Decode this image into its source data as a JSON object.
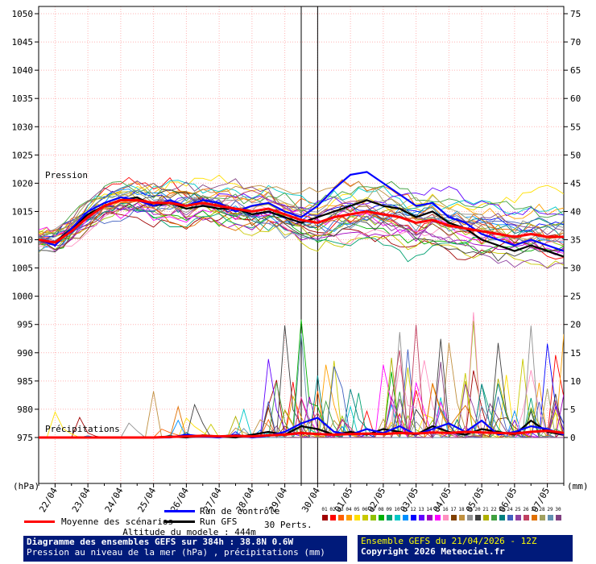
{
  "chart_data": {
    "type": "line",
    "title": "Diagramme des ensembles GEFS sur 384h : 38.8N 0.6W",
    "subtitle": "Pression au niveau de la mer (hPa) , précipitations (mm)",
    "x_hours_end": 384,
    "x_day_label_start_hour": 12,
    "x_day_label_step_hours": 24,
    "x_day_labels": [
      "22/04",
      "23/04",
      "24/04",
      "25/04",
      "26/04",
      "27/04",
      "28/04",
      "29/04",
      "30/04",
      "01/05",
      "02/05",
      "03/05",
      "04/05",
      "05/05",
      "06/05",
      "07/05"
    ],
    "left_axis": {
      "label": "(hPa)",
      "min": 975,
      "max": 1050,
      "tick_step": 5,
      "region_label": "Pression"
    },
    "right_axis": {
      "label": "(mm)",
      "min": 0,
      "max": 75,
      "tick_step": 5,
      "region_label": "Précipitations"
    },
    "grid_color": "#ffb4b4",
    "vertical_marker_hours": [
      192,
      204
    ],
    "series": [
      {
        "name": "Moyenne des scénarios",
        "color": "#ff0000",
        "width": 3,
        "pressure": [
          1010,
          1009.5,
          1011.5,
          1014,
          1016,
          1017,
          1017,
          1016.5,
          1016.5,
          1016,
          1016.5,
          1016,
          1015.5,
          1015,
          1015.5,
          1014.5,
          1013.5,
          1013,
          1014,
          1014.5,
          1015,
          1014.5,
          1014,
          1013,
          1013.5,
          1012.5,
          1012,
          1011.5,
          1011,
          1010.5,
          1011,
          1010.5,
          1010.5
        ],
        "precip": [
          0,
          0,
          0,
          0,
          0,
          0,
          0,
          0,
          0.1,
          0.2,
          0.3,
          0.2,
          0.3,
          0.2,
          0.4,
          0.5,
          0.8,
          0.6,
          0.5,
          0.6,
          0.7,
          0.6,
          0.8,
          0.7,
          0.9,
          0.8,
          1,
          0.9,
          0.8,
          0.7,
          1,
          1.2,
          0.8
        ]
      },
      {
        "name": "Run de contrôle",
        "color": "#0000ff",
        "width": 2.2,
        "pressure": [
          1010,
          1009,
          1012,
          1015,
          1016.5,
          1017.5,
          1017,
          1016,
          1017,
          1016,
          1017,
          1016.5,
          1015,
          1016,
          1016.5,
          1015,
          1014,
          1016,
          1019,
          1021.5,
          1022,
          1020,
          1018,
          1016,
          1016.5,
          1014,
          1013,
          1011,
          1010,
          1009,
          1010,
          1009,
          1008
        ],
        "precip": [
          0,
          0,
          0,
          0,
          0,
          0,
          0,
          0,
          0,
          0.5,
          0.2,
          0,
          0.5,
          0,
          0.3,
          1,
          2.5,
          3.5,
          1,
          0.5,
          1.5,
          0.8,
          2,
          0.5,
          1.5,
          2.5,
          1,
          3,
          0.5,
          1,
          2,
          1.5,
          0.5
        ]
      },
      {
        "name": "Run GFS",
        "color": "#000000",
        "width": 2.2,
        "pressure": [
          1010,
          1009.5,
          1012,
          1014.5,
          1016,
          1017,
          1017.5,
          1016,
          1016.5,
          1015.5,
          1016,
          1015.5,
          1015.5,
          1014.5,
          1015,
          1014,
          1013,
          1014,
          1015,
          1016,
          1017,
          1016,
          1015.5,
          1014,
          1015,
          1013,
          1012,
          1010,
          1009,
          1008,
          1009,
          1008,
          1007
        ],
        "precip": [
          0,
          0,
          0,
          0,
          0,
          0,
          0,
          0,
          0.2,
          0,
          0.4,
          0.2,
          0,
          0.5,
          1,
          0.5,
          2,
          1.5,
          0.5,
          1,
          0.5,
          1.5,
          1,
          0.5,
          2,
          1,
          0.5,
          1.5,
          1,
          0.5,
          3,
          1,
          0.5
        ]
      }
    ],
    "members": {
      "count": 30,
      "labels": [
        "01",
        "02",
        "03",
        "04",
        "05",
        "06",
        "07",
        "08",
        "09",
        "10",
        "11",
        "12",
        "13",
        "14",
        "15",
        "16",
        "17",
        "18",
        "19",
        "20",
        "21",
        "22",
        "23",
        "24",
        "25",
        "26",
        "27",
        "28",
        "29",
        "30"
      ],
      "colors": [
        "#a00000",
        "#ff0000",
        "#ff6000",
        "#ffa000",
        "#ffe000",
        "#c8c800",
        "#90c000",
        "#00b000",
        "#00a070",
        "#00c8c8",
        "#0090ff",
        "#0000ff",
        "#6000ff",
        "#a000c0",
        "#ff00ff",
        "#ff90c0",
        "#804000",
        "#c09040",
        "#909090",
        "#404040",
        "#b0b000",
        "#40a040",
        "#008080",
        "#4060c0",
        "#9040a0",
        "#c04060",
        "#e07000",
        "#a0a060",
        "#6090b0",
        "#804080"
      ],
      "seed": 42,
      "pressure_spread_start": 2,
      "pressure_spread_end": 10,
      "precip_max": 26
    }
  },
  "legend": {
    "mean_label": "Moyenne des scénarios",
    "control_label": "Run de contrôle",
    "gfs_label": "Run GFS",
    "perts_label": "30 Perts.",
    "altitude_note": "Altitude du modele : 444m"
  },
  "footer": {
    "bg_color": "#001a7a",
    "run_info": "Ensemble GEFS du 21/04/2026 - 12Z",
    "run_info_color": "#ffff00",
    "copyright": "Copyright 2026 Meteociel.fr"
  }
}
